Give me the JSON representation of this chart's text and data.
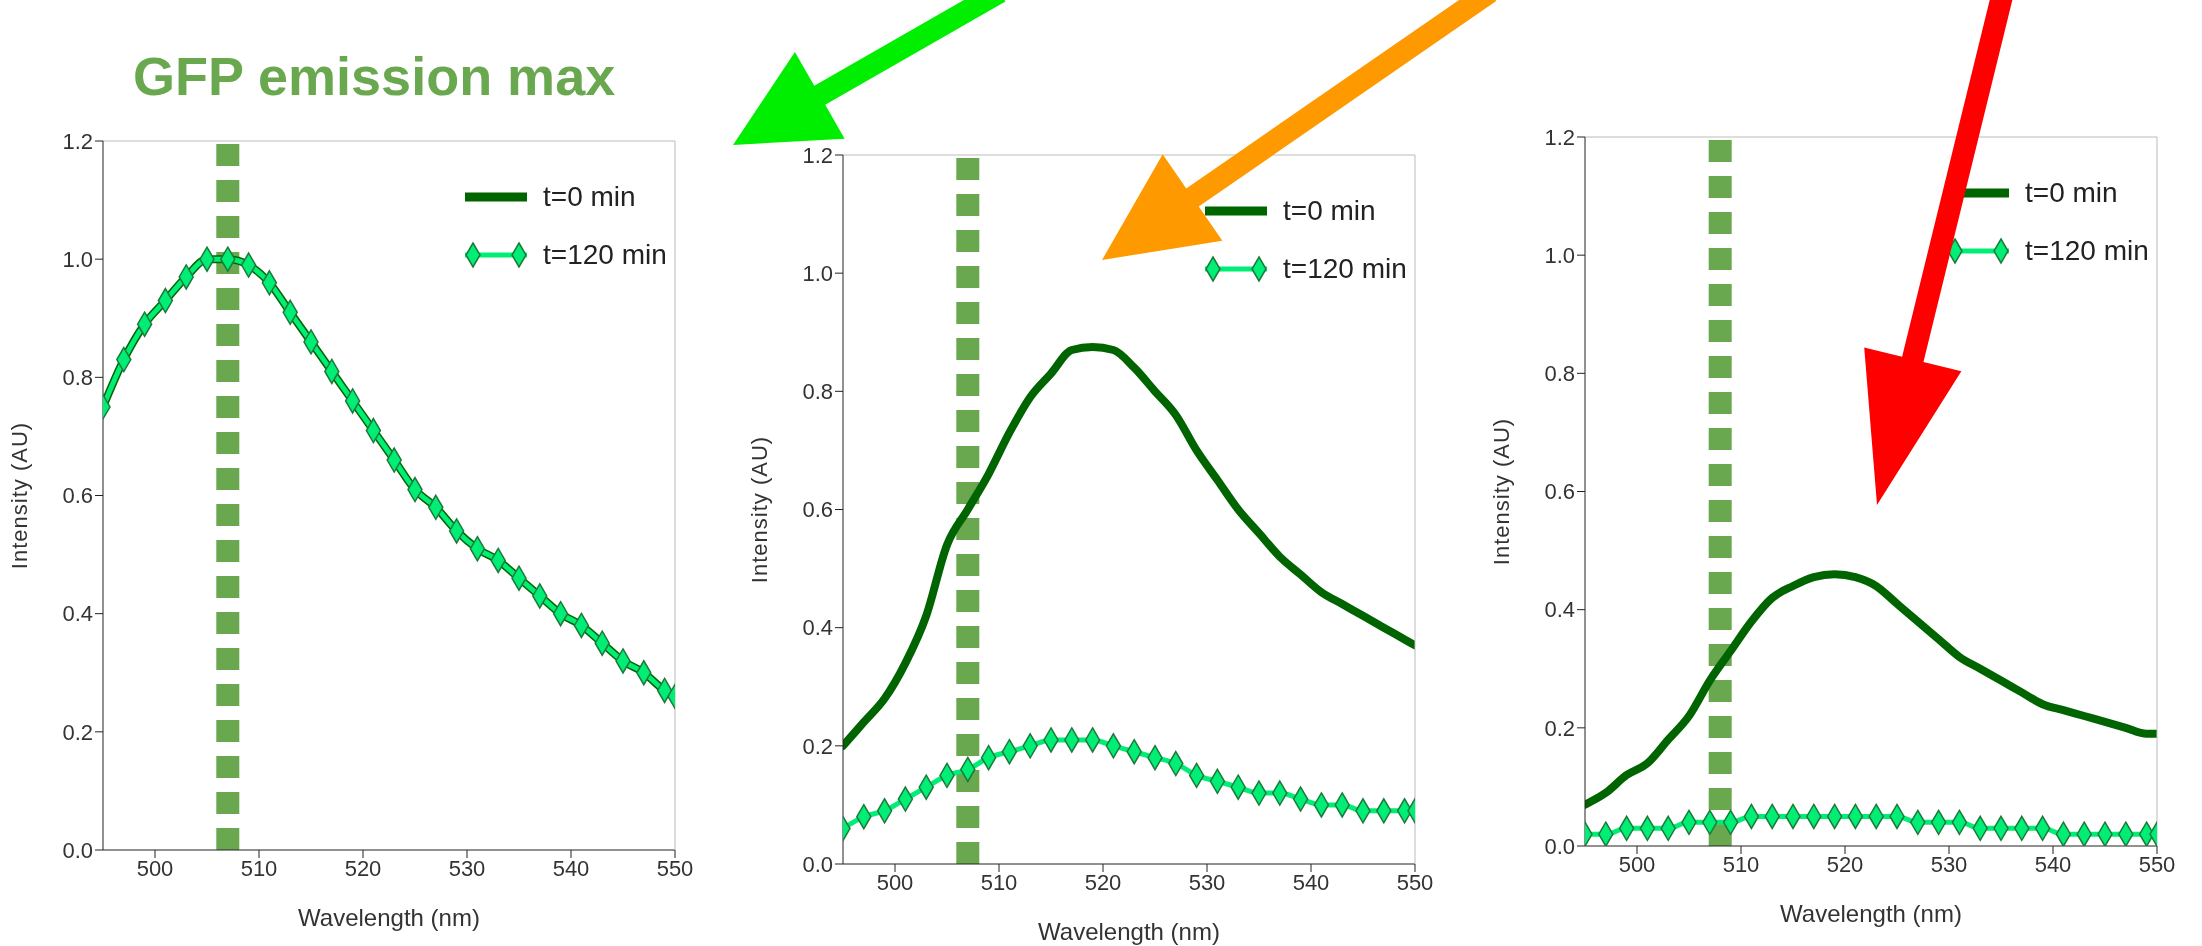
{
  "chart_data": [
    {
      "type": "line",
      "title": "GFP emission max",
      "xlabel": "Wavelength (nm)",
      "ylabel": "Intensity (AU)",
      "legend": "top right",
      "x": [
        495,
        497,
        499,
        501,
        503,
        505,
        507,
        509,
        511,
        513,
        515,
        517,
        519,
        521,
        523,
        525,
        527,
        529,
        531,
        533,
        535,
        537,
        539,
        541,
        543,
        545,
        547,
        549,
        550
      ],
      "series": [
        {
          "name": "t=0 min",
          "color": "#006400",
          "marker": "none",
          "values": [
            0.75,
            0.83,
            0.89,
            0.93,
            0.97,
            1.0,
            1.0,
            0.99,
            0.96,
            0.91,
            0.86,
            0.81,
            0.76,
            0.71,
            0.66,
            0.61,
            0.58,
            0.54,
            0.51,
            0.49,
            0.46,
            0.43,
            0.4,
            0.38,
            0.35,
            0.32,
            0.3,
            0.27,
            0.26
          ]
        },
        {
          "name": "t=120 min",
          "color": "#00ee76",
          "marker": "diamond",
          "values": [
            0.75,
            0.83,
            0.89,
            0.93,
            0.97,
            1.0,
            1.0,
            0.99,
            0.96,
            0.91,
            0.86,
            0.81,
            0.76,
            0.71,
            0.66,
            0.61,
            0.58,
            0.54,
            0.51,
            0.49,
            0.46,
            0.43,
            0.4,
            0.38,
            0.35,
            0.32,
            0.3,
            0.27,
            0.26
          ]
        }
      ],
      "xlim": [
        495,
        550
      ],
      "xticks": [
        500,
        510,
        520,
        530,
        540,
        550
      ],
      "ylim": [
        0,
        1.2
      ],
      "yticks": [
        {
          "value": 0,
          "label": "0.0"
        },
        {
          "value": 0.2,
          "label": "0.2"
        },
        {
          "value": 0.4,
          "label": "0.4"
        },
        {
          "value": 0.6,
          "label": "0.6"
        },
        {
          "value": 0.8,
          "label": "0.8"
        },
        {
          "value": 1,
          "label": "1.0"
        },
        {
          "value": 1.2,
          "label": "1.2"
        }
      ],
      "ref_lines": [
        {
          "axis": "x",
          "value": 507,
          "color": "#6aa84f",
          "line_style": "dashed"
        }
      ]
    },
    {
      "type": "line",
      "xlabel": "Wavelength (nm)",
      "ylabel": "Intensity (AU)",
      "legend": "top right",
      "x": [
        495,
        497,
        499,
        501,
        503,
        505,
        507,
        509,
        511,
        513,
        515,
        517,
        519,
        521,
        523,
        525,
        527,
        529,
        531,
        533,
        535,
        537,
        539,
        541,
        543,
        545,
        547,
        549,
        550
      ],
      "series": [
        {
          "name": "t=0 min",
          "color": "#006400",
          "marker": "none",
          "values": [
            0.2,
            0.24,
            0.28,
            0.34,
            0.42,
            0.54,
            0.6,
            0.66,
            0.73,
            0.79,
            0.83,
            0.87,
            0.875,
            0.87,
            0.84,
            0.8,
            0.76,
            0.7,
            0.65,
            0.6,
            0.56,
            0.52,
            0.49,
            0.46,
            0.44,
            0.42,
            0.4,
            0.38,
            0.37
          ]
        },
        {
          "name": "t=120 min",
          "color": "#00ee76",
          "marker": "diamond",
          "values": [
            0.06,
            0.08,
            0.09,
            0.11,
            0.13,
            0.15,
            0.16,
            0.18,
            0.19,
            0.2,
            0.21,
            0.21,
            0.21,
            0.2,
            0.19,
            0.18,
            0.17,
            0.15,
            0.14,
            0.13,
            0.12,
            0.12,
            0.11,
            0.1,
            0.1,
            0.09,
            0.09,
            0.09,
            0.09
          ]
        }
      ],
      "xlim": [
        495,
        550
      ],
      "xticks": [
        500,
        510,
        520,
        530,
        540,
        550
      ],
      "ylim": [
        0,
        1.2
      ],
      "yticks": [
        {
          "value": 0,
          "label": "0.0"
        },
        {
          "value": 0.2,
          "label": "0.2"
        },
        {
          "value": 0.4,
          "label": "0.4"
        },
        {
          "value": 0.6,
          "label": "0.6"
        },
        {
          "value": 0.8,
          "label": "0.8"
        },
        {
          "value": 1,
          "label": "1.0"
        },
        {
          "value": 1.2,
          "label": "1.2"
        }
      ],
      "ref_lines": [
        {
          "axis": "x",
          "value": 507,
          "color": "#6aa84f",
          "line_style": "dashed"
        }
      ]
    },
    {
      "type": "line",
      "xlabel": "Wavelength (nm)",
      "ylabel": "Intensity (AU)",
      "legend": "top right",
      "x": [
        495,
        497,
        499,
        501,
        503,
        505,
        507,
        509,
        511,
        513,
        515,
        517,
        519,
        521,
        523,
        525,
        527,
        529,
        531,
        533,
        535,
        537,
        539,
        541,
        543,
        545,
        547,
        549,
        550
      ],
      "series": [
        {
          "name": "t=0 min",
          "color": "#006400",
          "marker": "none",
          "values": [
            0.07,
            0.09,
            0.12,
            0.14,
            0.18,
            0.22,
            0.28,
            0.33,
            0.38,
            0.42,
            0.44,
            0.455,
            0.46,
            0.455,
            0.44,
            0.41,
            0.38,
            0.35,
            0.32,
            0.3,
            0.28,
            0.26,
            0.24,
            0.23,
            0.22,
            0.21,
            0.2,
            0.19,
            0.19
          ]
        },
        {
          "name": "t=120 min",
          "color": "#00ee76",
          "marker": "diamond",
          "values": [
            0.02,
            0.02,
            0.03,
            0.03,
            0.03,
            0.04,
            0.04,
            0.04,
            0.05,
            0.05,
            0.05,
            0.05,
            0.05,
            0.05,
            0.05,
            0.05,
            0.04,
            0.04,
            0.04,
            0.03,
            0.03,
            0.03,
            0.03,
            0.02,
            0.02,
            0.02,
            0.02,
            0.02,
            0.02
          ]
        }
      ],
      "xlim": [
        495,
        550
      ],
      "xticks": [
        500,
        510,
        520,
        530,
        540,
        550
      ],
      "ylim": [
        0,
        1.2
      ],
      "yticks": [
        {
          "value": 0,
          "label": "0.0"
        },
        {
          "value": 0.2,
          "label": "0.2"
        },
        {
          "value": 0.4,
          "label": "0.4"
        },
        {
          "value": 0.6,
          "label": "0.6"
        },
        {
          "value": 0.8,
          "label": "0.8"
        },
        {
          "value": 1,
          "label": "1.0"
        },
        {
          "value": 1.2,
          "label": "1.2"
        }
      ],
      "ref_lines": [
        {
          "axis": "x",
          "value": 508,
          "color": "#6aa84f",
          "line_style": "dashed"
        }
      ]
    }
  ]
}
